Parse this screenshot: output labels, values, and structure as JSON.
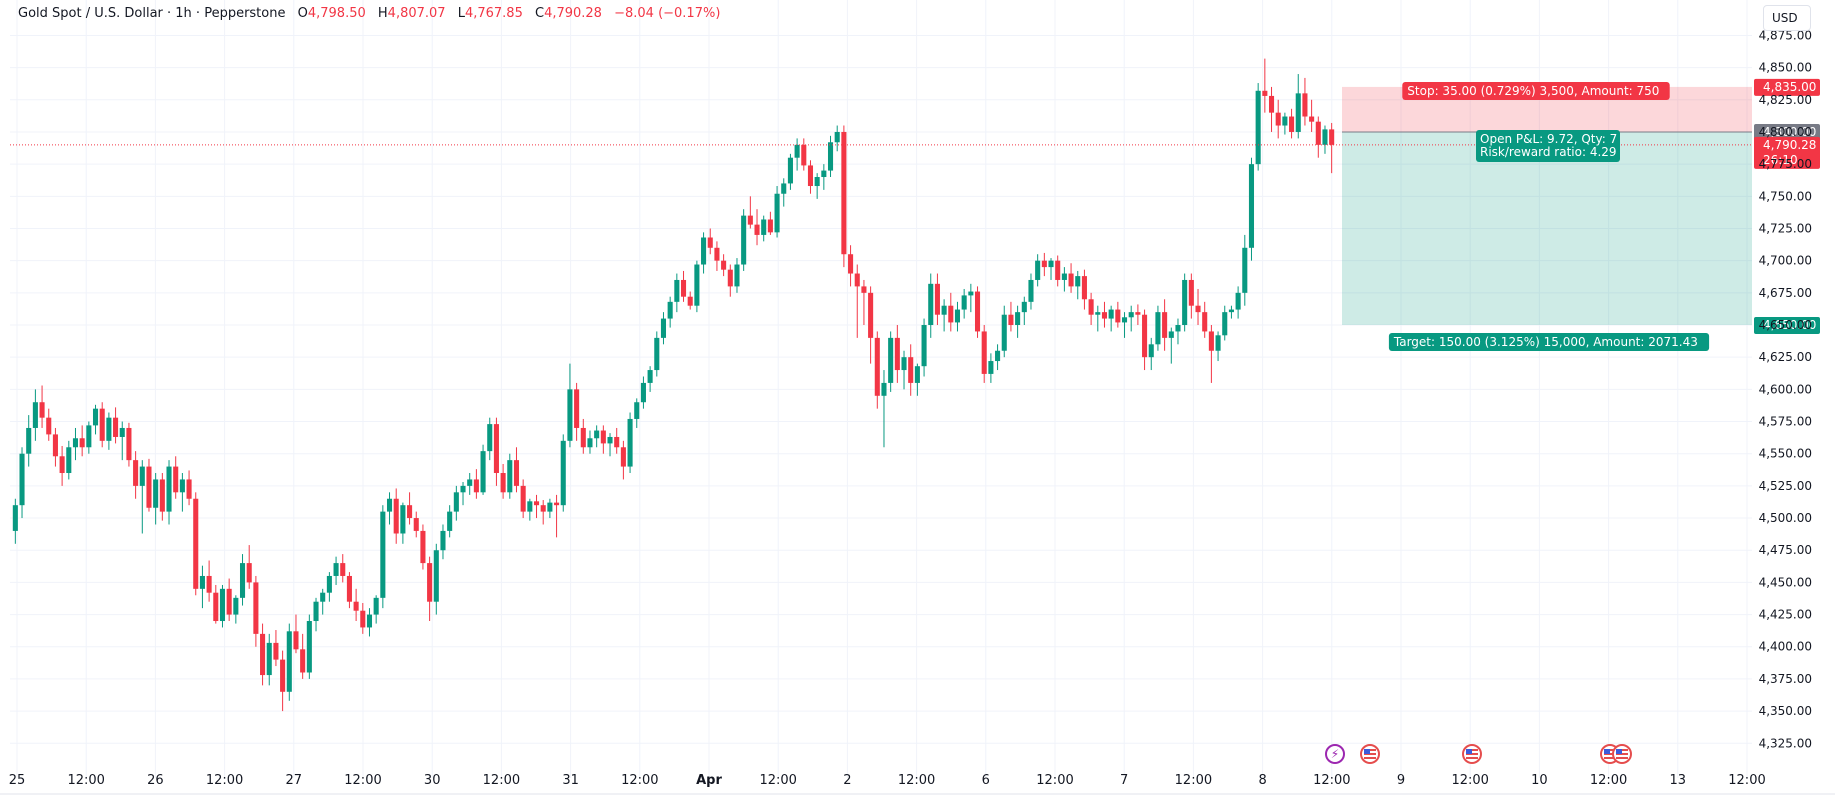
{
  "header": {
    "symbol": "Gold Spot / U.S. Dollar · 1h · Pepperstone",
    "o_label": "O",
    "o": "4,798.50",
    "h_label": "H",
    "h": "4,807.07",
    "l_label": "L",
    "l": "4,767.85",
    "c_label": "C",
    "c": "4,790.28",
    "change": "−8.04 (−0.17%)"
  },
  "currency": "USD",
  "colors": {
    "up": "#089981",
    "down": "#f23645",
    "grid": "#f0f3fa",
    "text": "#131722"
  },
  "icons": {
    "economic_event": "us-flag-icon",
    "earnings_event": "lightning-icon"
  },
  "chart_data": {
    "type": "candlestick",
    "title": "Gold Spot / U.S. Dollar · 1h · Pepperstone",
    "x_tick_labels": [
      "25",
      "12:00",
      "26",
      "12:00",
      "27",
      "12:00",
      "30",
      "12:00",
      "31",
      "12:00",
      "Apr",
      "12:00",
      "2",
      "12:00",
      "6",
      "12:00",
      "7",
      "12:00",
      "8",
      "12:00",
      "9",
      "12:00",
      "10",
      "12:00",
      "13",
      "12:00"
    ],
    "y_tick_labels": [
      "4,875.00",
      "4,850.00",
      "4,825.00",
      "4,800.00",
      "4,775.00",
      "4,750.00",
      "4,725.00",
      "4,700.00",
      "4,675.00",
      "4,650.00",
      "4,625.00",
      "4,600.00",
      "4,575.00",
      "4,550.00",
      "4,525.00",
      "4,500.00",
      "4,475.00",
      "4,450.00",
      "4,425.00",
      "4,400.00",
      "4,375.00",
      "4,350.00",
      "4,325.00"
    ],
    "ylim": [
      4312,
      4887
    ],
    "grid": true,
    "candles": [
      [
        4490,
        4515,
        4480,
        4510
      ],
      [
        4510,
        4555,
        4500,
        4550
      ],
      [
        4550,
        4580,
        4540,
        4570
      ],
      [
        4570,
        4600,
        4560,
        4590
      ],
      [
        4590,
        4603,
        4570,
        4578
      ],
      [
        4578,
        4585,
        4560,
        4565
      ],
      [
        4565,
        4570,
        4540,
        4548
      ],
      [
        4548,
        4556,
        4525,
        4535
      ],
      [
        4535,
        4560,
        4530,
        4555
      ],
      [
        4555,
        4570,
        4545,
        4562
      ],
      [
        4562,
        4572,
        4548,
        4555
      ],
      [
        4555,
        4575,
        4550,
        4572
      ],
      [
        4572,
        4588,
        4565,
        4585
      ],
      [
        4585,
        4590,
        4555,
        4560
      ],
      [
        4560,
        4582,
        4553,
        4578
      ],
      [
        4578,
        4586,
        4558,
        4563
      ],
      [
        4563,
        4575,
        4545,
        4570
      ],
      [
        4570,
        4574,
        4540,
        4545
      ],
      [
        4545,
        4552,
        4515,
        4525
      ],
      [
        4525,
        4545,
        4488,
        4540
      ],
      [
        4540,
        4546,
        4505,
        4508
      ],
      [
        4508,
        4535,
        4495,
        4530
      ],
      [
        4530,
        4535,
        4498,
        4505
      ],
      [
        4505,
        4545,
        4495,
        4540
      ],
      [
        4540,
        4548,
        4515,
        4520
      ],
      [
        4520,
        4535,
        4505,
        4530
      ],
      [
        4530,
        4537,
        4510,
        4515
      ],
      [
        4515,
        4520,
        4440,
        4445
      ],
      [
        4445,
        4463,
        4430,
        4455
      ],
      [
        4455,
        4467,
        4435,
        4442
      ],
      [
        4442,
        4448,
        4418,
        4420
      ],
      [
        4420,
        4448,
        4415,
        4445
      ],
      [
        4445,
        4453,
        4420,
        4425
      ],
      [
        4425,
        4440,
        4418,
        4438
      ],
      [
        4438,
        4472,
        4432,
        4465
      ],
      [
        4465,
        4479,
        4445,
        4450
      ],
      [
        4450,
        4455,
        4400,
        4410
      ],
      [
        4410,
        4418,
        4370,
        4378
      ],
      [
        4378,
        4410,
        4370,
        4403
      ],
      [
        4403,
        4413,
        4385,
        4390
      ],
      [
        4390,
        4397,
        4350,
        4365
      ],
      [
        4365,
        4418,
        4358,
        4412
      ],
      [
        4412,
        4425,
        4395,
        4398
      ],
      [
        4398,
        4410,
        4375,
        4380
      ],
      [
        4380,
        4425,
        4375,
        4420
      ],
      [
        4420,
        4438,
        4412,
        4435
      ],
      [
        4435,
        4445,
        4425,
        4442
      ],
      [
        4442,
        4458,
        4435,
        4455
      ],
      [
        4455,
        4470,
        4448,
        4465
      ],
      [
        4465,
        4472,
        4450,
        4455
      ],
      [
        4455,
        4458,
        4430,
        4435
      ],
      [
        4435,
        4445,
        4420,
        4428
      ],
      [
        4428,
        4434,
        4410,
        4415
      ],
      [
        4415,
        4430,
        4408,
        4425
      ],
      [
        4425,
        4440,
        4418,
        4438
      ],
      [
        4438,
        4510,
        4430,
        4505
      ],
      [
        4505,
        4520,
        4495,
        4515
      ],
      [
        4515,
        4523,
        4480,
        4488
      ],
      [
        4488,
        4512,
        4480,
        4510
      ],
      [
        4510,
        4520,
        4495,
        4500
      ],
      [
        4500,
        4505,
        4485,
        4490
      ],
      [
        4490,
        4495,
        4460,
        4465
      ],
      [
        4465,
        4470,
        4420,
        4435
      ],
      [
        4435,
        4480,
        4425,
        4475
      ],
      [
        4475,
        4495,
        4468,
        4490
      ],
      [
        4490,
        4510,
        4485,
        4505
      ],
      [
        4505,
        4525,
        4498,
        4520
      ],
      [
        4520,
        4528,
        4510,
        4525
      ],
      [
        4525,
        4535,
        4518,
        4530
      ],
      [
        4530,
        4538,
        4515,
        4520
      ],
      [
        4520,
        4557,
        4518,
        4552
      ],
      [
        4552,
        4578,
        4545,
        4573
      ],
      [
        4573,
        4578,
        4525,
        4535
      ],
      [
        4535,
        4542,
        4515,
        4520
      ],
      [
        4520,
        4550,
        4515,
        4545
      ],
      [
        4545,
        4555,
        4520,
        4525
      ],
      [
        4525,
        4530,
        4500,
        4505
      ],
      [
        4505,
        4515,
        4498,
        4513
      ],
      [
        4513,
        4518,
        4500,
        4510
      ],
      [
        4510,
        4514,
        4495,
        4505
      ],
      [
        4505,
        4515,
        4500,
        4512
      ],
      [
        4512,
        4518,
        4485,
        4510
      ],
      [
        4510,
        4565,
        4505,
        4560
      ],
      [
        4560,
        4620,
        4555,
        4600
      ],
      [
        4600,
        4605,
        4560,
        4570
      ],
      [
        4570,
        4577,
        4550,
        4555
      ],
      [
        4555,
        4568,
        4550,
        4562
      ],
      [
        4562,
        4572,
        4555,
        4568
      ],
      [
        4568,
        4572,
        4550,
        4558
      ],
      [
        4558,
        4566,
        4548,
        4563
      ],
      [
        4563,
        4570,
        4550,
        4555
      ],
      [
        4555,
        4560,
        4530,
        4540
      ],
      [
        4540,
        4582,
        4535,
        4577
      ],
      [
        4577,
        4593,
        4570,
        4590
      ],
      [
        4590,
        4610,
        4585,
        4605
      ],
      [
        4605,
        4618,
        4598,
        4615
      ],
      [
        4615,
        4645,
        4610,
        4640
      ],
      [
        4640,
        4660,
        4635,
        4655
      ],
      [
        4655,
        4672,
        4648,
        4668
      ],
      [
        4668,
        4690,
        4660,
        4685
      ],
      [
        4685,
        4692,
        4668,
        4672
      ],
      [
        4672,
        4676,
        4662,
        4665
      ],
      [
        4665,
        4700,
        4660,
        4697
      ],
      [
        4697,
        4722,
        4690,
        4718
      ],
      [
        4718,
        4725,
        4705,
        4710
      ],
      [
        4710,
        4715,
        4692,
        4700
      ],
      [
        4700,
        4705,
        4688,
        4693
      ],
      [
        4693,
        4697,
        4672,
        4680
      ],
      [
        4680,
        4702,
        4675,
        4697
      ],
      [
        4697,
        4740,
        4692,
        4735
      ],
      [
        4735,
        4750,
        4725,
        4728
      ],
      [
        4728,
        4740,
        4712,
        4720
      ],
      [
        4720,
        4735,
        4715,
        4732
      ],
      [
        4732,
        4738,
        4720,
        4722
      ],
      [
        4722,
        4758,
        4718,
        4752
      ],
      [
        4752,
        4764,
        4742,
        4760
      ],
      [
        4760,
        4783,
        4755,
        4780
      ],
      [
        4780,
        4795,
        4770,
        4790
      ],
      [
        4790,
        4795,
        4770,
        4774
      ],
      [
        4774,
        4778,
        4752,
        4758
      ],
      [
        4758,
        4768,
        4748,
        4765
      ],
      [
        4765,
        4775,
        4755,
        4770
      ],
      [
        4770,
        4797,
        4765,
        4792
      ],
      [
        4792,
        4805,
        4785,
        4800
      ],
      [
        4800,
        4805,
        4695,
        4705
      ],
      [
        4705,
        4712,
        4680,
        4690
      ],
      [
        4690,
        4697,
        4640,
        4680
      ],
      [
        4680,
        4685,
        4650,
        4675
      ],
      [
        4675,
        4680,
        4620,
        4640
      ],
      [
        4640,
        4645,
        4585,
        4595
      ],
      [
        4595,
        4615,
        4555,
        4605
      ],
      [
        4605,
        4645,
        4598,
        4640
      ],
      [
        4640,
        4650,
        4605,
        4615
      ],
      [
        4615,
        4630,
        4600,
        4625
      ],
      [
        4625,
        4635,
        4595,
        4605
      ],
      [
        4605,
        4620,
        4595,
        4618
      ],
      [
        4618,
        4655,
        4610,
        4650
      ],
      [
        4650,
        4690,
        4640,
        4682
      ],
      [
        4682,
        4690,
        4650,
        4658
      ],
      [
        4658,
        4670,
        4645,
        4665
      ],
      [
        4665,
        4675,
        4645,
        4652
      ],
      [
        4652,
        4668,
        4645,
        4662
      ],
      [
        4662,
        4678,
        4655,
        4673
      ],
      [
        4673,
        4682,
        4660,
        4676
      ],
      [
        4676,
        4680,
        4640,
        4645
      ],
      [
        4645,
        4650,
        4605,
        4612
      ],
      [
        4612,
        4628,
        4605,
        4622
      ],
      [
        4622,
        4635,
        4615,
        4630
      ],
      [
        4630,
        4665,
        4625,
        4658
      ],
      [
        4658,
        4668,
        4645,
        4650
      ],
      [
        4650,
        4665,
        4640,
        4660
      ],
      [
        4660,
        4672,
        4650,
        4668
      ],
      [
        4668,
        4690,
        4662,
        4685
      ],
      [
        4685,
        4705,
        4680,
        4700
      ],
      [
        4700,
        4706,
        4688,
        4695
      ],
      [
        4695,
        4702,
        4685,
        4700
      ],
      [
        4700,
        4704,
        4680,
        4685
      ],
      [
        4685,
        4695,
        4676,
        4690
      ],
      [
        4690,
        4698,
        4675,
        4680
      ],
      [
        4680,
        4692,
        4670,
        4688
      ],
      [
        4688,
        4693,
        4662,
        4670
      ],
      [
        4670,
        4675,
        4650,
        4658
      ],
      [
        4658,
        4665,
        4645,
        4660
      ],
      [
        4660,
        4668,
        4648,
        4655
      ],
      [
        4655,
        4665,
        4645,
        4662
      ],
      [
        4662,
        4668,
        4648,
        4652
      ],
      [
        4652,
        4660,
        4640,
        4656
      ],
      [
        4656,
        4665,
        4645,
        4660
      ],
      [
        4660,
        4666,
        4650,
        4658
      ],
      [
        4658,
        4662,
        4615,
        4625
      ],
      [
        4625,
        4640,
        4615,
        4635
      ],
      [
        4635,
        4665,
        4630,
        4660
      ],
      [
        4660,
        4670,
        4630,
        4640
      ],
      [
        4640,
        4648,
        4620,
        4645
      ],
      [
        4645,
        4655,
        4635,
        4650
      ],
      [
        4650,
        4690,
        4645,
        4685
      ],
      [
        4685,
        4690,
        4655,
        4665
      ],
      [
        4665,
        4678,
        4650,
        4660
      ],
      [
        4660,
        4668,
        4640,
        4645
      ],
      [
        4645,
        4650,
        4605,
        4630
      ],
      [
        4630,
        4645,
        4622,
        4642
      ],
      [
        4642,
        4665,
        4638,
        4660
      ],
      [
        4660,
        4665,
        4655,
        4662
      ],
      [
        4662,
        4680,
        4655,
        4675
      ],
      [
        4675,
        4720,
        4665,
        4710
      ],
      [
        4710,
        4780,
        4700,
        4775
      ],
      [
        4775,
        4838,
        4770,
        4832
      ],
      [
        4832,
        4857,
        4815,
        4828
      ],
      [
        4828,
        4835,
        4800,
        4815
      ],
      [
        4815,
        4825,
        4795,
        4805
      ],
      [
        4805,
        4815,
        4798,
        4812
      ],
      [
        4812,
        4818,
        4795,
        4800
      ],
      [
        4800,
        4845,
        4795,
        4830
      ],
      [
        4830,
        4842,
        4805,
        4812
      ],
      [
        4812,
        4825,
        4800,
        4808
      ],
      [
        4808,
        4812,
        4780,
        4790
      ],
      [
        4790,
        4805,
        4783,
        4802
      ],
      [
        4802,
        4807,
        4768,
        4790
      ]
    ],
    "last_price": "4,790.28",
    "countdown": "26:10",
    "position": {
      "entry": 4800,
      "entry_label": "4,800.00",
      "stop": 4835,
      "stop_label": "4,835.00",
      "target": 4650,
      "target_label": "4,650.00",
      "stop_text": "Stop: 35.00 (0.729%) 3,500, Amount: 750",
      "pnl_text": "Open P&L: 9.72, Qty: 7",
      "rr_text": "Risk/reward ratio: 4.29",
      "target_text": "Target: 150.00 (3.125%) 15,000, Amount: 2071.43"
    }
  }
}
